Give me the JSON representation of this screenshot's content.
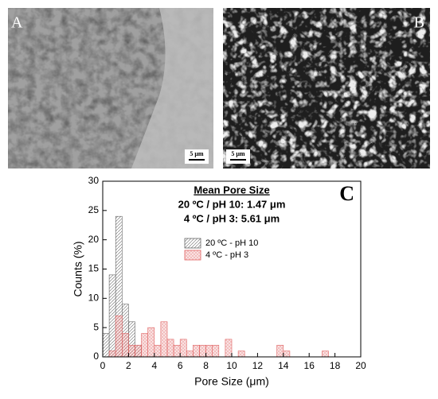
{
  "panels": [
    {
      "label": "A",
      "scale_bar": "5 μm"
    },
    {
      "label": "B",
      "scale_bar": "5 μm"
    }
  ],
  "chart_data": {
    "type": "histogram",
    "panel_label": "C",
    "annotations": [
      "Mean Pore Size",
      "20 ºC / pH 10: 1.47 μm",
      "4 ºC / pH 3: 5.61 μm"
    ],
    "x_label": "Pore Size (μm)",
    "y_label": "Counts (%)",
    "bins": [
      0,
      0.5,
      1,
      1.5,
      2,
      2.5,
      3,
      3.5,
      4,
      4.5,
      5,
      5.5,
      6,
      6.5,
      7,
      7.5,
      8,
      8.5,
      9,
      9.5,
      10,
      10.5,
      11,
      11.5,
      12,
      12.5,
      13,
      13.5,
      14,
      14.5,
      15,
      15.5,
      16,
      16.5,
      17,
      17.5,
      18,
      18.5,
      19,
      19.5,
      20
    ],
    "series": [
      {
        "name": "20 ºC - pH 10",
        "color": "#666666",
        "values": [
          4,
          14,
          24,
          9,
          6,
          2,
          0,
          0,
          0,
          0,
          0,
          0,
          0,
          0,
          0,
          0,
          0,
          0,
          0,
          0,
          0,
          0,
          0,
          0,
          0,
          0,
          0,
          0,
          0,
          0,
          0,
          0,
          0,
          0,
          0,
          0,
          0,
          0,
          0,
          0
        ]
      },
      {
        "name": "4 ºC - pH 3",
        "color": "#e06060",
        "values": [
          0,
          1,
          7,
          4,
          2,
          2,
          4,
          5,
          2,
          6,
          3,
          2,
          3,
          1,
          2,
          2,
          2,
          2,
          0,
          3,
          0,
          1,
          0,
          0,
          0,
          0,
          0,
          2,
          1,
          0,
          0,
          0,
          0,
          0,
          1,
          0,
          0,
          0,
          0,
          0
        ]
      }
    ],
    "xlim": [
      0,
      20
    ],
    "xticks": [
      0,
      2,
      4,
      6,
      8,
      10,
      12,
      14,
      16,
      18,
      20
    ],
    "ylim": [
      0,
      30
    ],
    "yticks": [
      0,
      5,
      10,
      15,
      20,
      25,
      30
    ],
    "legend_position": "center"
  }
}
